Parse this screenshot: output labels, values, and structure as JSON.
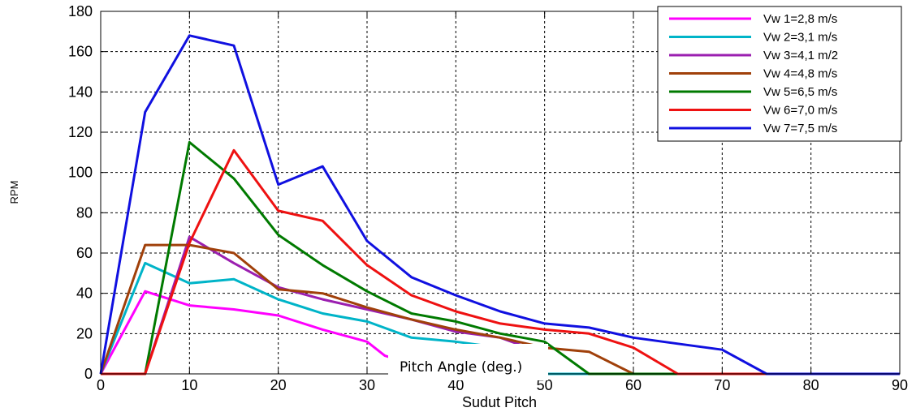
{
  "chart_data": {
    "type": "line",
    "xlabel": "Sudut Pitch",
    "ylabel": "RPM",
    "xlim": [
      0,
      90
    ],
    "ylim": [
      0,
      180
    ],
    "xticks": [
      0,
      10,
      20,
      30,
      40,
      50,
      60,
      70,
      80,
      90
    ],
    "yticks": [
      0,
      20,
      40,
      60,
      80,
      100,
      120,
      140,
      160,
      180
    ],
    "grid": true,
    "legend_position": "top-right",
    "annotation": "Pitch Angle (deg.)",
    "series": [
      {
        "name": "Vw 1=2,8 m/s",
        "color": "#ff00ff",
        "x": [
          0,
          5,
          10,
          15,
          20,
          25,
          30,
          32,
          35
        ],
        "y": [
          0,
          41,
          34,
          32,
          29,
          22,
          16,
          9,
          5
        ]
      },
      {
        "name": "Vw 2=3,1 m/s",
        "color": "#00b4c8",
        "x": [
          0,
          5,
          10,
          15,
          20,
          25,
          30,
          35,
          40,
          45,
          50,
          55,
          60,
          65,
          70,
          75,
          80,
          85,
          90
        ],
        "y": [
          0,
          55,
          45,
          47,
          37,
          30,
          26,
          18,
          16,
          13,
          0,
          0,
          0,
          0,
          0,
          0,
          0,
          0,
          0
        ]
      },
      {
        "name": "Vw 3=4,1 m/2",
        "color": "#9b1fb0",
        "x": [
          0,
          5,
          10,
          15,
          20,
          25,
          30,
          35,
          40,
          45,
          50
        ],
        "y": [
          0,
          0,
          68,
          55,
          43,
          37,
          32,
          27,
          21,
          18,
          10
        ]
      },
      {
        "name": "Vw 4=4,8 m/s",
        "color": "#a0400a",
        "x": [
          0,
          5,
          10,
          15,
          20,
          25,
          30,
          35,
          40,
          45,
          50,
          55,
          60,
          65,
          70,
          75,
          80,
          85,
          90
        ],
        "y": [
          0,
          64,
          64,
          60,
          42,
          40,
          33,
          27,
          22,
          18,
          13,
          11,
          0,
          0,
          0,
          0,
          0,
          0,
          0
        ]
      },
      {
        "name": "Vw 5=6,5 m/s",
        "color": "#007a00",
        "x": [
          0,
          5,
          10,
          15,
          20,
          25,
          30,
          35,
          40,
          45,
          50,
          55,
          60,
          65,
          70,
          75,
          80,
          85,
          90
        ],
        "y": [
          0,
          0,
          115,
          97,
          69,
          54,
          41,
          30,
          26,
          20,
          16,
          0,
          0,
          0,
          0,
          0,
          0,
          0,
          0
        ]
      },
      {
        "name": "Vw 6=7,0 m/s",
        "color": "#ee1111",
        "x": [
          0,
          5,
          10,
          15,
          20,
          25,
          30,
          35,
          40,
          45,
          50,
          55,
          60,
          65,
          70,
          75,
          80,
          85,
          90
        ],
        "y": [
          0,
          0,
          65,
          111,
          81,
          76,
          54,
          39,
          31,
          25,
          22,
          20,
          13,
          0,
          0,
          0,
          0,
          0,
          0
        ]
      },
      {
        "name": "Vw 7=7,5 m/s",
        "color": "#1010e0",
        "x": [
          0,
          5,
          10,
          15,
          20,
          25,
          30,
          35,
          40,
          45,
          50,
          55,
          60,
          65,
          70,
          75,
          80,
          85,
          90
        ],
        "y": [
          0,
          130,
          168,
          163,
          94,
          103,
          66,
          48,
          39,
          31,
          25,
          23,
          18,
          15,
          12,
          0,
          0,
          0,
          0
        ]
      }
    ]
  }
}
